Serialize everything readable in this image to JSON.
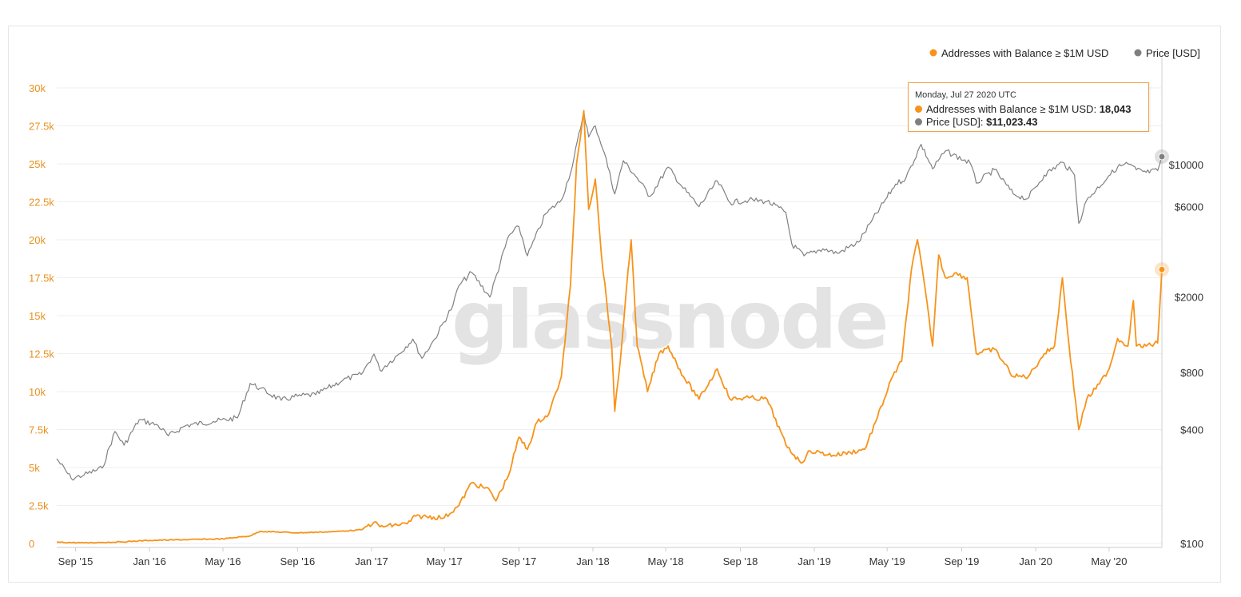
{
  "watermark": "glassnode",
  "legend": [
    {
      "label": "Addresses with Balance ≥ $1M USD",
      "color": "#f7931a",
      "icon": "circle-dot"
    },
    {
      "label": "Price [USD]",
      "color": "#7f7f7f",
      "icon": "circle-dot"
    }
  ],
  "tooltip": {
    "date": "Monday, Jul 27 2020 UTC",
    "series1_label": "Addresses with Balance ≥ $1M USD:",
    "series1_value": "18,043",
    "series2_label": "Price [USD]:",
    "series2_value": "$11,023.43"
  },
  "chart_data": {
    "type": "line",
    "left_axis": {
      "ticks": [
        0,
        2500,
        5000,
        7500,
        10000,
        12500,
        15000,
        17500,
        20000,
        22500,
        25000,
        27500,
        30000
      ],
      "tick_labels": [
        "0",
        "2.5k",
        "5k",
        "7.5k",
        "10k",
        "12.5k",
        "15k",
        "17.5k",
        "20k",
        "22.5k",
        "25k",
        "27.5k",
        "30k"
      ],
      "ylim": [
        0,
        30000
      ]
    },
    "right_axis": {
      "scale": "log",
      "ticks": [
        100,
        400,
        800,
        2000,
        6000,
        10000
      ],
      "tick_labels": [
        "$100",
        "$400",
        "$800",
        "$2000",
        "$6000",
        "$10000"
      ],
      "ylim": [
        100,
        33000
      ]
    },
    "x_axis": {
      "ticks": [
        "2015-09-01",
        "2016-01-01",
        "2016-05-01",
        "2016-09-01",
        "2017-01-01",
        "2017-05-01",
        "2017-09-01",
        "2018-01-01",
        "2018-05-01",
        "2018-09-01",
        "2019-01-01",
        "2019-05-01",
        "2019-09-01",
        "2020-01-01",
        "2020-05-01"
      ],
      "tick_labels": [
        "Sep '15",
        "Jan '16",
        "May '16",
        "Sep '16",
        "Jan '17",
        "May '17",
        "Sep '17",
        "Jan '18",
        "May '18",
        "Sep '18",
        "Jan '19",
        "May '19",
        "Sep '19",
        "Jan '20",
        "May '20"
      ],
      "range": [
        "2015-08-01",
        "2020-07-27"
      ]
    },
    "grid": true,
    "legend_position": "top-right",
    "series": [
      {
        "name": "Addresses with Balance ≥ $1M USD",
        "axis": "left",
        "color": "#f7931a",
        "points": [
          [
            "2015-08-01",
            80
          ],
          [
            "2015-09-15",
            40
          ],
          [
            "2015-11-15",
            100
          ],
          [
            "2016-01-01",
            200
          ],
          [
            "2016-03-01",
            250
          ],
          [
            "2016-05-01",
            300
          ],
          [
            "2016-06-15",
            500
          ],
          [
            "2016-07-01",
            800
          ],
          [
            "2016-09-01",
            700
          ],
          [
            "2016-11-01",
            780
          ],
          [
            "2016-12-15",
            900
          ],
          [
            "2017-01-05",
            1400
          ],
          [
            "2017-01-15",
            1100
          ],
          [
            "2017-03-01",
            1300
          ],
          [
            "2017-03-15",
            1800
          ],
          [
            "2017-05-01",
            1700
          ],
          [
            "2017-05-25",
            2500
          ],
          [
            "2017-06-15",
            4000
          ],
          [
            "2017-07-15",
            3500
          ],
          [
            "2017-07-25",
            2800
          ],
          [
            "2017-08-15",
            4500
          ],
          [
            "2017-09-01",
            7000
          ],
          [
            "2017-09-15",
            6200
          ],
          [
            "2017-10-01",
            8000
          ],
          [
            "2017-10-20",
            8500
          ],
          [
            "2017-11-10",
            11000
          ],
          [
            "2017-11-25",
            17000
          ],
          [
            "2017-12-05",
            25000
          ],
          [
            "2017-12-17",
            28500
          ],
          [
            "2017-12-25",
            22000
          ],
          [
            "2018-01-05",
            24000
          ],
          [
            "2018-01-15",
            19000
          ],
          [
            "2018-02-01",
            13000
          ],
          [
            "2018-02-06",
            8700
          ],
          [
            "2018-02-15",
            12000
          ],
          [
            "2018-02-28",
            18000
          ],
          [
            "2018-03-05",
            20000
          ],
          [
            "2018-03-15",
            13000
          ],
          [
            "2018-04-01",
            10000
          ],
          [
            "2018-04-20",
            12500
          ],
          [
            "2018-05-05",
            13000
          ],
          [
            "2018-05-30",
            11000
          ],
          [
            "2018-06-25",
            9500
          ],
          [
            "2018-07-25",
            11500
          ],
          [
            "2018-08-15",
            9500
          ],
          [
            "2018-09-15",
            9600
          ],
          [
            "2018-10-15",
            9500
          ],
          [
            "2018-11-15",
            6500
          ],
          [
            "2018-12-10",
            5300
          ],
          [
            "2018-12-25",
            6100
          ],
          [
            "2019-02-01",
            5800
          ],
          [
            "2019-03-01",
            6000
          ],
          [
            "2019-03-25",
            6200
          ],
          [
            "2019-04-15",
            8300
          ],
          [
            "2019-05-10",
            11000
          ],
          [
            "2019-05-25",
            12000
          ],
          [
            "2019-06-10",
            18000
          ],
          [
            "2019-06-20",
            20000
          ],
          [
            "2019-06-30",
            17500
          ],
          [
            "2019-07-15",
            13000
          ],
          [
            "2019-07-25",
            19000
          ],
          [
            "2019-08-05",
            17500
          ],
          [
            "2019-08-20",
            17800
          ],
          [
            "2019-09-10",
            17500
          ],
          [
            "2019-09-25",
            12500
          ],
          [
            "2019-10-25",
            12800
          ],
          [
            "2019-11-25",
            11000
          ],
          [
            "2019-12-20",
            11000
          ],
          [
            "2020-01-15",
            12500
          ],
          [
            "2020-02-01",
            13000
          ],
          [
            "2020-02-14",
            17500
          ],
          [
            "2020-02-25",
            13000
          ],
          [
            "2020-03-12",
            7500
          ],
          [
            "2020-03-25",
            9500
          ],
          [
            "2020-04-15",
            10500
          ],
          [
            "2020-05-01",
            11500
          ],
          [
            "2020-05-15",
            13500
          ],
          [
            "2020-06-01",
            13000
          ],
          [
            "2020-06-10",
            16000
          ],
          [
            "2020-06-15",
            13000
          ],
          [
            "2020-07-01",
            13000
          ],
          [
            "2020-07-20",
            13200
          ],
          [
            "2020-07-27",
            18043
          ]
        ]
      },
      {
        "name": "Price [USD]",
        "axis": "right",
        "color": "#808080",
        "points": [
          [
            "2015-08-01",
            280
          ],
          [
            "2015-08-25",
            220
          ],
          [
            "2015-09-15",
            230
          ],
          [
            "2015-10-15",
            250
          ],
          [
            "2015-11-05",
            390
          ],
          [
            "2015-11-20",
            330
          ],
          [
            "2015-12-15",
            450
          ],
          [
            "2016-01-15",
            420
          ],
          [
            "2016-02-01",
            370
          ],
          [
            "2016-03-01",
            420
          ],
          [
            "2016-04-15",
            440
          ],
          [
            "2016-05-25",
            460
          ],
          [
            "2016-06-15",
            700
          ],
          [
            "2016-07-01",
            660
          ],
          [
            "2016-08-05",
            570
          ],
          [
            "2016-09-01",
            600
          ],
          [
            "2016-10-01",
            610
          ],
          [
            "2016-11-15",
            730
          ],
          [
            "2016-12-15",
            780
          ],
          [
            "2017-01-05",
            1000
          ],
          [
            "2017-01-15",
            820
          ],
          [
            "2017-02-15",
            1000
          ],
          [
            "2017-03-10",
            1200
          ],
          [
            "2017-03-25",
            950
          ],
          [
            "2017-04-15",
            1200
          ],
          [
            "2017-05-15",
            1800
          ],
          [
            "2017-05-25",
            2300
          ],
          [
            "2017-06-15",
            2700
          ],
          [
            "2017-07-15",
            2000
          ],
          [
            "2017-08-15",
            4200
          ],
          [
            "2017-09-01",
            4700
          ],
          [
            "2017-09-15",
            3300
          ],
          [
            "2017-10-15",
            5500
          ],
          [
            "2017-11-10",
            6500
          ],
          [
            "2017-11-28",
            9800
          ],
          [
            "2017-12-17",
            19000
          ],
          [
            "2017-12-25",
            14000
          ],
          [
            "2018-01-05",
            16000
          ],
          [
            "2018-01-20",
            11500
          ],
          [
            "2018-02-06",
            7000
          ],
          [
            "2018-02-20",
            10500
          ],
          [
            "2018-03-15",
            8500
          ],
          [
            "2018-04-05",
            6800
          ],
          [
            "2018-05-05",
            9700
          ],
          [
            "2018-05-30",
            7500
          ],
          [
            "2018-06-25",
            6000
          ],
          [
            "2018-07-25",
            8200
          ],
          [
            "2018-08-15",
            6300
          ],
          [
            "2018-09-15",
            6500
          ],
          [
            "2018-10-15",
            6400
          ],
          [
            "2018-11-15",
            5600
          ],
          [
            "2018-11-25",
            3800
          ],
          [
            "2018-12-15",
            3300
          ],
          [
            "2019-01-15",
            3600
          ],
          [
            "2019-02-08",
            3400
          ],
          [
            "2019-03-15",
            3900
          ],
          [
            "2019-04-05",
            5000
          ],
          [
            "2019-05-15",
            7900
          ],
          [
            "2019-06-01",
            8500
          ],
          [
            "2019-06-26",
            12800
          ],
          [
            "2019-07-15",
            9500
          ],
          [
            "2019-08-05",
            11800
          ],
          [
            "2019-09-15",
            10200
          ],
          [
            "2019-09-25",
            8000
          ],
          [
            "2019-10-25",
            9400
          ],
          [
            "2019-11-25",
            7000
          ],
          [
            "2019-12-18",
            6600
          ],
          [
            "2020-01-15",
            8800
          ],
          [
            "2020-02-14",
            10300
          ],
          [
            "2020-03-05",
            8800
          ],
          [
            "2020-03-12",
            4900
          ],
          [
            "2020-03-25",
            6500
          ],
          [
            "2020-04-30",
            8700
          ],
          [
            "2020-05-15",
            9700
          ],
          [
            "2020-06-01",
            10100
          ],
          [
            "2020-06-15",
            9400
          ],
          [
            "2020-07-01",
            9100
          ],
          [
            "2020-07-20",
            9300
          ],
          [
            "2020-07-27",
            11023.43
          ]
        ]
      }
    ]
  }
}
